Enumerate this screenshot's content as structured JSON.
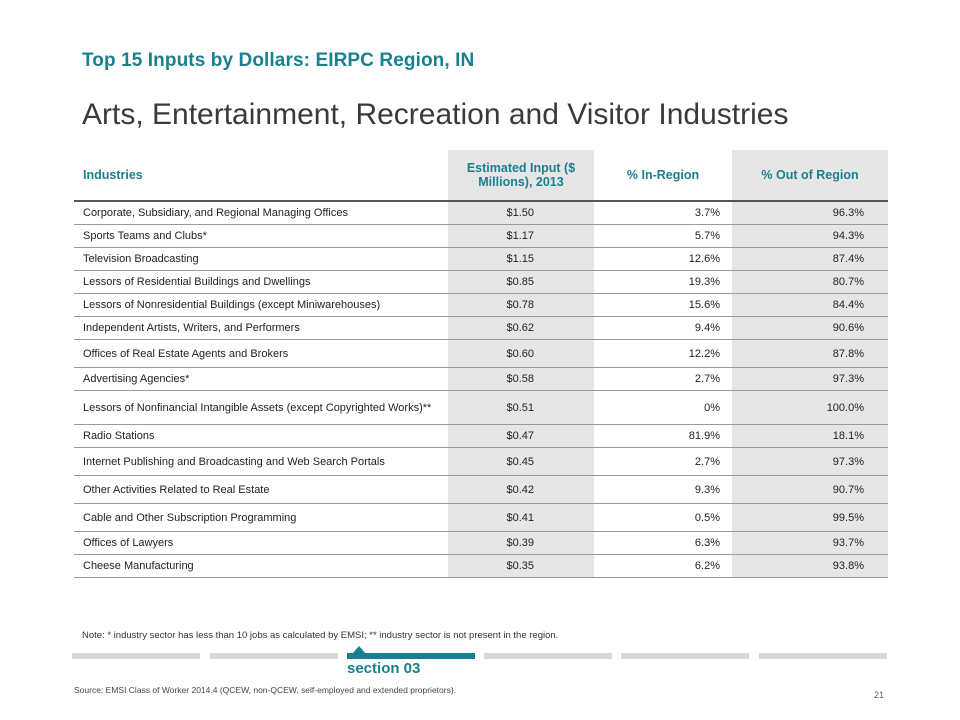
{
  "header": {
    "subtitle": "Top 15 Inputs by Dollars: EIRPC Region, IN",
    "title": "Arts, Entertainment, Recreation and Visitor Industries"
  },
  "table": {
    "columns": [
      "Industries",
      "Estimated Input ($ Millions), 2013",
      "% In-Region",
      "% Out of Region"
    ],
    "rows": [
      [
        "Corporate, Subsidiary, and Regional Managing Offices",
        "$1.50",
        "3.7%",
        "96.3%"
      ],
      [
        "Sports Teams and Clubs*",
        "$1.17",
        "5.7%",
        "94.3%"
      ],
      [
        "Television Broadcasting",
        "$1.15",
        "12.6%",
        "87.4%"
      ],
      [
        "Lessors of Residential Buildings and Dwellings",
        "$0.85",
        "19.3%",
        "80.7%"
      ],
      [
        "Lessors of Nonresidential Buildings (except Miniwarehouses)",
        "$0.78",
        "15.6%",
        "84.4%"
      ],
      [
        "Independent Artists, Writers, and Performers",
        "$0.62",
        "9.4%",
        "90.6%"
      ],
      [
        "Offices of Real Estate Agents and Brokers",
        "$0.60",
        "12.2%",
        "87.8%"
      ],
      [
        "Advertising Agencies*",
        "$0.58",
        "2.7%",
        "97.3%"
      ],
      [
        "Lessors of Nonfinancial Intangible Assets (except Copyrighted Works)**",
        "$0.51",
        "0%",
        "100.0%"
      ],
      [
        "Radio Stations",
        "$0.47",
        "81.9%",
        "18.1%"
      ],
      [
        "Internet Publishing and Broadcasting and Web Search Portals",
        "$0.45",
        "2.7%",
        "97.3%"
      ],
      [
        "Other Activities Related to Real Estate",
        "$0.42",
        "9.3%",
        "90.7%"
      ],
      [
        "Cable and Other Subscription Programming",
        "$0.41",
        "0.5%",
        "99.5%"
      ],
      [
        "Offices of Lawyers",
        "$0.39",
        "6.3%",
        "93.7%"
      ],
      [
        "Cheese Manufacturing",
        "$0.35",
        "6.2%",
        "93.8%"
      ]
    ]
  },
  "note": "Note: * industry sector has less than 10 jobs as calculated by EMSI; ** industry sector is not present in the region.",
  "footer": {
    "section_label": "section 03",
    "source": "Source: EMSI Class of Worker 2014.4 (QCEW, non-QCEW, self-employed and extended proprietors).",
    "page_number": "21"
  },
  "colors": {
    "accent": "#1a7f8f",
    "shaded_column": "#e6e6e6",
    "inactive_bar": "#d9d9d9"
  }
}
